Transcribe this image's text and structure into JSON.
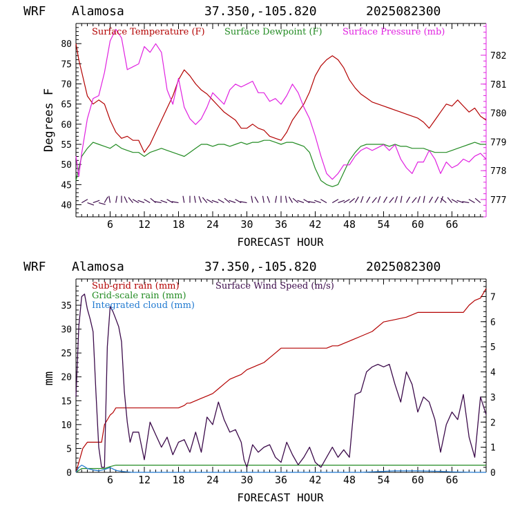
{
  "charts": [
    {
      "header": {
        "model": "WRF",
        "station": "Alamosa",
        "coords": "37.350,-105.820",
        "date": "2025082300"
      },
      "xlabel": "FORECAST HOUR",
      "ylabel_left": "Degrees F",
      "legend": [
        {
          "label": "Surface Temperature (F)",
          "color": "#b30000"
        },
        {
          "label": "Surface Dewpoint (F)",
          "color": "#228b22"
        },
        {
          "label": "Surface Pressure (mb)",
          "color": "#e020e0"
        }
      ],
      "left_ticks": [
        "40",
        "45",
        "50",
        "55",
        "60",
        "65",
        "70",
        "75",
        "80"
      ],
      "right_ticks": [
        "777",
        "778",
        "779",
        "780",
        "781",
        "782"
      ],
      "x_ticks": [
        "6",
        "12",
        "18",
        "24",
        "30",
        "36",
        "42",
        "48",
        "54",
        "60",
        "66"
      ]
    },
    {
      "header": {
        "model": "WRF",
        "station": "Alamosa",
        "coords": "37.350,-105.820",
        "date": "2025082300"
      },
      "xlabel": "FORECAST HOUR",
      "ylabel_left": "mm",
      "legend": [
        {
          "label": "Sub-grid rain (mm)",
          "color": "#b30000"
        },
        {
          "label": "Surface Wind Speed (m/s)",
          "color": "#3b0a4a"
        },
        {
          "label": "Grid-scale rain (mm)",
          "color": "#228b22"
        },
        {
          "label": "Integrated cloud (mm)",
          "color": "#1e78d0"
        }
      ],
      "left_ticks": [
        "0",
        "5",
        "10",
        "15",
        "20",
        "25",
        "30",
        "35"
      ],
      "right_ticks": [
        "0",
        "1",
        "2",
        "3",
        "4",
        "5",
        "6",
        "7"
      ],
      "x_ticks": [
        "6",
        "12",
        "18",
        "24",
        "30",
        "36",
        "42",
        "48",
        "54",
        "60",
        "66"
      ]
    }
  ],
  "chart_data": [
    {
      "type": "line",
      "title": "WRF Alamosa 37.350,-105.820 2025082300",
      "xlabel": "FORECAST HOUR",
      "ylabel": "Degrees F",
      "xlim": [
        0,
        72
      ],
      "ylim": [
        37,
        85
      ],
      "y2lim": [
        776.4,
        783.1
      ],
      "series": [
        {
          "name": "Surface Temperature (F)",
          "axis": "left",
          "color": "#b30000",
          "x": [
            0,
            0.5,
            1,
            2,
            3,
            4,
            5,
            6,
            7,
            8,
            9,
            10,
            11,
            12,
            13,
            14,
            15,
            16,
            17,
            18,
            19,
            20,
            21,
            22,
            23,
            24,
            25,
            26,
            27,
            28,
            29,
            30,
            31,
            32,
            33,
            34,
            35,
            36,
            37,
            38,
            39,
            40,
            41,
            42,
            43,
            44,
            45,
            46,
            47,
            48,
            49,
            50,
            51,
            52,
            53,
            54,
            55,
            56,
            57,
            58,
            59,
            60,
            61,
            62,
            63,
            64,
            65,
            66,
            67,
            68,
            69,
            70,
            71,
            72
          ],
          "y": [
            80,
            76,
            73,
            67,
            65,
            66,
            65,
            61,
            58,
            56.5,
            57,
            56,
            56,
            53,
            55,
            58,
            61,
            64,
            67,
            71,
            73.5,
            72,
            70,
            68.5,
            67.5,
            66,
            64.5,
            63,
            62,
            61,
            59,
            59,
            60,
            59,
            58.5,
            57,
            56.5,
            56,
            58,
            61,
            63,
            65,
            68,
            72,
            74.5,
            76,
            77,
            76,
            74,
            71,
            69,
            67.5,
            66.5,
            65.5,
            65,
            64.5,
            64,
            63.5,
            63,
            62.5,
            62,
            61.5,
            60.5,
            59,
            61,
            63,
            65,
            64.5,
            66,
            64.5,
            63,
            64,
            62,
            61
          ]
        },
        {
          "name": "Surface Dewpoint (F)",
          "axis": "left",
          "color": "#228b22",
          "x": [
            0,
            0.5,
            1,
            2,
            3,
            4,
            5,
            6,
            7,
            8,
            9,
            10,
            11,
            12,
            13,
            14,
            15,
            16,
            17,
            18,
            19,
            20,
            21,
            22,
            23,
            24,
            25,
            26,
            27,
            28,
            29,
            30,
            31,
            32,
            33,
            34,
            35,
            36,
            37,
            38,
            39,
            40,
            41,
            42,
            43,
            44,
            45,
            46,
            47,
            48,
            49,
            50,
            51,
            52,
            53,
            54,
            55,
            56,
            57,
            58,
            59,
            60,
            61,
            62,
            63,
            64,
            65,
            66,
            67,
            68,
            69,
            70,
            71,
            72
          ],
          "y": [
            46,
            49,
            52,
            54,
            55.5,
            55,
            54.5,
            54,
            55,
            54,
            53.5,
            53,
            53,
            52,
            53,
            53.5,
            54,
            53.5,
            53,
            52.5,
            52,
            53,
            54,
            55,
            55,
            54.5,
            55,
            55,
            54.5,
            55,
            55.5,
            55,
            55.5,
            55.5,
            56,
            56,
            55.5,
            55,
            55.5,
            55.5,
            55,
            54.5,
            53,
            49,
            46,
            45,
            44.5,
            45,
            48,
            51,
            53,
            54.5,
            55,
            55,
            55,
            55,
            54.5,
            55,
            54.5,
            54.5,
            54,
            54,
            54,
            53.5,
            53,
            53,
            53,
            53.5,
            54,
            54.5,
            55,
            55.5,
            55,
            55
          ]
        },
        {
          "name": "Surface Pressure (mb)",
          "axis": "right",
          "color": "#e020e0",
          "x": [
            0,
            0.5,
            1,
            2,
            3,
            4,
            5,
            6,
            7,
            8,
            9,
            10,
            11,
            12,
            13,
            14,
            15,
            16,
            17,
            18,
            19,
            20,
            21,
            22,
            23,
            24,
            25,
            26,
            27,
            28,
            29,
            30,
            31,
            32,
            33,
            34,
            35,
            36,
            37,
            38,
            39,
            40,
            41,
            42,
            43,
            44,
            45,
            46,
            47,
            48,
            49,
            50,
            51,
            52,
            53,
            54,
            55,
            56,
            57,
            58,
            59,
            60,
            61,
            62,
            63,
            64,
            65,
            66,
            67,
            68,
            69,
            70,
            71,
            72
          ],
          "y": [
            778.5,
            777.8,
            778.6,
            779.8,
            780.5,
            780.6,
            781.4,
            782.5,
            782.9,
            782.6,
            781.5,
            781.6,
            781.7,
            782.3,
            782.1,
            782.4,
            782.1,
            780.8,
            780.3,
            781.2,
            780.2,
            779.8,
            779.6,
            779.8,
            780.2,
            780.7,
            780.5,
            780.3,
            780.8,
            781,
            780.9,
            781,
            781.1,
            780.7,
            780.7,
            780.4,
            780.5,
            780.3,
            780.6,
            781,
            780.7,
            780.2,
            779.8,
            779.2,
            778.5,
            777.9,
            777.7,
            777.9,
            778.2,
            778.2,
            778.5,
            778.7,
            778.8,
            778.7,
            778.8,
            778.9,
            778.7,
            778.9,
            778.4,
            778.1,
            777.9,
            778.3,
            778.3,
            778.7,
            778.4,
            777.9,
            778.3,
            778.1,
            778.2,
            778.4,
            778.3,
            778.5,
            778.6,
            778.4
          ]
        },
        {
          "name": "Surface Wind Barbs",
          "type": "barbs",
          "color": "#3b0a4a",
          "x": [
            1,
            2,
            3,
            4,
            5,
            6,
            7,
            8,
            9,
            10,
            11,
            12,
            13,
            14,
            15,
            16,
            17,
            18,
            19,
            20,
            21,
            22,
            23,
            24,
            25,
            26,
            27,
            28,
            29,
            30,
            31,
            32,
            33,
            34,
            35,
            36,
            37,
            38,
            39,
            40,
            41,
            42,
            43,
            44,
            45,
            46,
            47,
            48,
            49,
            50,
            51,
            52,
            53,
            54,
            55,
            56,
            57,
            58,
            59,
            60,
            61,
            62,
            63,
            64,
            65,
            66,
            67,
            68,
            69,
            70,
            71
          ],
          "angle_deg": [
            30,
            -20,
            20,
            -15,
            60,
            100,
            80,
            90,
            115,
            130,
            150,
            160,
            150,
            140,
            170,
            160,
            150,
            170,
            100,
            90,
            100,
            110,
            130,
            150,
            160,
            150,
            140,
            160,
            150,
            170,
            100,
            120,
            100,
            110,
            80,
            90,
            100,
            120,
            140,
            160,
            150,
            170,
            160,
            150,
            30,
            20,
            30,
            40,
            60,
            70,
            60,
            50,
            70,
            60,
            50,
            70,
            80,
            60,
            50,
            70,
            80,
            60,
            60,
            70,
            140,
            130,
            150,
            160,
            170,
            150,
            140
          ]
        }
      ]
    },
    {
      "type": "line",
      "title": "WRF Alamosa 37.350,-105.820 2025082300",
      "xlabel": "FORECAST HOUR",
      "ylabel": "mm",
      "xlim": [
        0,
        72
      ],
      "ylim": [
        0,
        40.5
      ],
      "y2lim": [
        0,
        7.7
      ],
      "series": [
        {
          "name": "Sub-grid rain (mm)",
          "axis": "left",
          "color": "#b30000",
          "x": [
            0,
            0.6,
            1.2,
            2,
            3,
            4,
            4.5,
            5,
            5.5,
            6,
            6.5,
            7,
            8,
            9,
            10,
            11,
            12,
            14,
            16,
            18,
            19,
            19.5,
            20,
            21,
            22,
            23,
            24,
            25,
            26,
            27,
            28,
            29,
            30,
            31,
            32,
            33,
            34,
            35,
            36,
            38,
            40,
            42,
            44,
            45,
            46,
            47,
            48,
            50,
            52,
            54,
            56,
            58,
            60,
            62,
            64,
            66,
            68,
            69,
            70,
            71,
            72
          ],
          "x_note": "",
          "y": [
            0,
            2.5,
            5,
            6.3,
            6.3,
            6.3,
            6.3,
            10,
            11,
            12,
            12.5,
            13.5,
            13.5,
            13.5,
            13.5,
            13.5,
            13.5,
            13.5,
            13.5,
            13.5,
            14,
            14.5,
            14.5,
            15,
            15.5,
            16,
            16.5,
            17.5,
            18.5,
            19.5,
            20,
            20.5,
            21.5,
            22,
            22.5,
            23,
            24,
            25,
            26,
            26,
            26,
            26,
            26,
            26.5,
            26.5,
            27,
            27.5,
            28.5,
            29.5,
            31.5,
            32,
            32.5,
            33.5,
            33.5,
            33.5,
            33.5,
            33.5,
            35,
            36,
            36.5,
            38.5
          ]
        },
        {
          "name": "Grid-scale rain (mm)",
          "axis": "left",
          "color": "#228b22",
          "x": [
            0,
            1,
            2,
            3,
            4,
            5,
            6,
            7,
            8,
            10,
            20,
            30,
            40,
            50,
            60,
            70,
            72
          ],
          "y": [
            0,
            0.8,
            0.8,
            0.8,
            0.8,
            0.8,
            1.2,
            1.5,
            1.5,
            1.5,
            1.5,
            1.5,
            1.5,
            1.5,
            1.5,
            1.5,
            1.5
          ]
        },
        {
          "name": "Integrated cloud (mm)",
          "axis": "left",
          "color": "#1e78d0",
          "x": [
            0,
            0.5,
            1,
            1.5,
            2,
            3,
            4,
            5,
            6,
            7,
            8,
            9,
            10,
            12,
            20,
            30,
            40,
            50,
            56,
            60,
            64,
            66,
            70,
            72
          ],
          "y": [
            0,
            1,
            1.5,
            1.2,
            0.8,
            0.5,
            0.3,
            0.6,
            1,
            0.4,
            0.2,
            0.1,
            0,
            0,
            0,
            0,
            0,
            0,
            0.3,
            0.3,
            0.2,
            0.1,
            0,
            0
          ]
        },
        {
          "name": "Surface Wind Speed (m/s)",
          "axis": "right",
          "color": "#3b0a4a",
          "x": [
            0,
            0.5,
            1,
            1.5,
            2,
            2.5,
            3,
            3.5,
            4,
            4.5,
            5,
            5.5,
            6,
            6.5,
            7,
            7.5,
            8,
            8.5,
            9,
            9.5,
            10,
            11,
            12,
            13,
            14,
            15,
            16,
            17,
            18,
            19,
            20,
            21,
            22,
            23,
            24,
            25,
            26,
            27,
            28,
            29,
            29.5,
            30,
            31,
            32,
            33,
            34,
            35,
            36,
            37,
            38,
            39,
            40,
            41,
            42,
            43,
            44,
            45,
            46,
            47,
            48,
            49,
            50,
            51,
            52,
            53,
            54,
            55,
            56,
            57,
            58,
            59,
            60,
            61,
            62,
            63,
            64,
            65,
            66,
            67,
            68,
            69,
            70,
            71,
            72
          ],
          "y": [
            3,
            5.8,
            7,
            7.1,
            6.5,
            6.1,
            5.6,
            3.2,
            1,
            0.2,
            0.2,
            5,
            6.6,
            6.4,
            6.1,
            5.8,
            5.2,
            3.2,
            2,
            1.2,
            1.6,
            1.6,
            0.5,
            2,
            1.5,
            1,
            1.4,
            0.7,
            1.2,
            1.3,
            0.8,
            1.6,
            0.8,
            2.2,
            1.9,
            2.8,
            2.1,
            1.6,
            1.7,
            1.2,
            0.5,
            0.2,
            1.1,
            0.8,
            1,
            1.1,
            0.6,
            0.4,
            1.2,
            0.7,
            0.3,
            0.6,
            1,
            0.4,
            0.2,
            0.6,
            1,
            0.6,
            0.9,
            0.6,
            3.1,
            3.2,
            4,
            4.2,
            4.3,
            4.2,
            4.3,
            3.5,
            2.8,
            4,
            3.5,
            2.4,
            3,
            2.8,
            2.1,
            0.8,
            1.9,
            2.4,
            2.1,
            3.1,
            1.4,
            0.6,
            3,
            2.3
          ]
        }
      ]
    }
  ]
}
